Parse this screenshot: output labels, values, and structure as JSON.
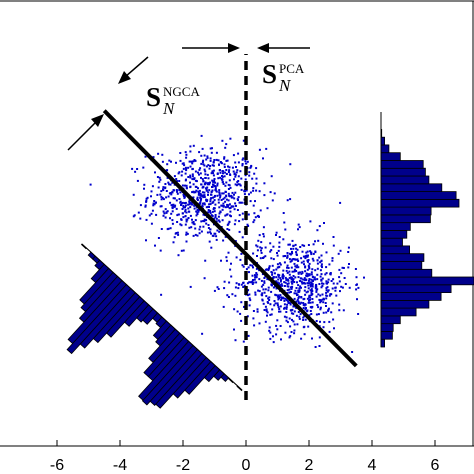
{
  "chart_data": {
    "type": "scatter",
    "x_ticks": [
      -6,
      -4,
      -2,
      0,
      2,
      4,
      6
    ],
    "x_tick_labels": [
      "-6",
      "-4",
      "-2",
      "0",
      "2",
      "4",
      "6"
    ],
    "xlim": [
      -7.0,
      7.0
    ],
    "grid": false,
    "clusters": [
      {
        "center_x": -1.3,
        "center_y": 1.5,
        "spread_x": 0.9,
        "spread_y": 0.75,
        "count": 750
      },
      {
        "center_x": 1.5,
        "center_y": -1.3,
        "spread_x": 0.9,
        "spread_y": 0.75,
        "count": 750
      }
    ],
    "marker_color": "#0000cc",
    "histogram_fill": "#00008b",
    "s_ngca_line": {
      "x": [
        -4.5,
        3.5
      ],
      "y": [
        4.2,
        -3.9
      ]
    },
    "s_pca_line": {
      "x": [
        0,
        0
      ],
      "y": [
        -6.0,
        6.0
      ]
    },
    "annotations": {
      "s_ngca": {
        "main": "S",
        "sub": "N",
        "sup": "NGCA"
      },
      "s_pca": {
        "main": "S",
        "sub": "N",
        "sup": "PCA"
      }
    }
  }
}
